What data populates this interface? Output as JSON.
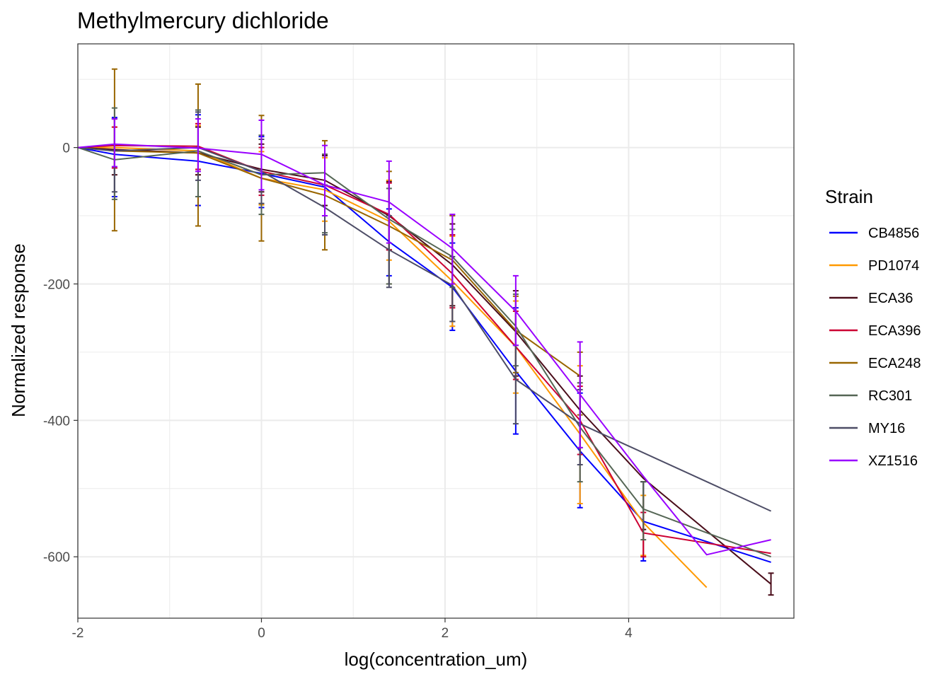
{
  "chart_data": {
    "type": "line",
    "title": "Methylmercury dichloride",
    "xlabel": "log(concentration_um)",
    "ylabel": "Normalized response",
    "xlim": [
      -2,
      5.8
    ],
    "ylim": [
      -690,
      152
    ],
    "x_ticks": [
      -2,
      0,
      2,
      4
    ],
    "x_tick_labels": [
      "-2",
      "0",
      "2",
      "4"
    ],
    "y_ticks": [
      0,
      -200,
      -400,
      -600
    ],
    "y_tick_labels": [
      "0",
      "-200",
      "-400",
      "-600"
    ],
    "grid": true,
    "legend": {
      "title": "Strain",
      "position": "right"
    },
    "series": [
      {
        "name": "CB4856",
        "color": "#0000ff",
        "x": [
          -2,
          -1.6,
          -0.69,
          0,
          0.69,
          1.39,
          2.08,
          2.77,
          3.47,
          4.16,
          5.55
        ],
        "y": [
          0,
          -10,
          -20,
          -38,
          -58,
          -138,
          -205,
          -328,
          -445,
          -548,
          -608
        ],
        "err_lo": [
          0,
          -72,
          -85,
          -88,
          -100,
          -188,
          -268,
          -420,
          -528,
          -606,
          null
        ],
        "err_hi": [
          0,
          44,
          48,
          16,
          -10,
          -90,
          -140,
          -235,
          -360,
          -490,
          null
        ]
      },
      {
        "name": "PD1074",
        "color": "#ff9900",
        "x": [
          -2,
          -1.6,
          -0.69,
          0,
          0.69,
          1.39,
          2.08,
          2.77,
          3.47,
          4.16,
          4.85
        ],
        "y": [
          0,
          0,
          -5,
          -45,
          -62,
          -108,
          -196,
          -292,
          -420,
          -550,
          -645
        ],
        "err_lo": [
          0,
          -30,
          -40,
          -84,
          -108,
          -165,
          -262,
          -360,
          -522,
          -598,
          null
        ],
        "err_hi": [
          0,
          30,
          32,
          -6,
          -15,
          -48,
          -130,
          -225,
          -320,
          -510,
          null
        ]
      },
      {
        "name": "ECA36",
        "color": "#4a0d1a",
        "x": [
          -2,
          -1.6,
          -0.69,
          0,
          0.69,
          1.39,
          2.08,
          2.77,
          3.47,
          4.16,
          5.55
        ],
        "y": [
          0,
          -3,
          -8,
          -32,
          -48,
          -100,
          -172,
          -270,
          -385,
          -485,
          -640
        ],
        "err_lo": [
          0,
          -40,
          -40,
          -65,
          -85,
          -150,
          -232,
          -335,
          -440,
          -560,
          -656
        ],
        "err_hi": [
          0,
          42,
          30,
          5,
          -12,
          -50,
          -112,
          -210,
          -335,
          -490,
          -624
        ]
      },
      {
        "name": "ECA396",
        "color": "#cc0033",
        "x": [
          -2,
          -1.6,
          -0.69,
          0,
          0.69,
          1.39,
          2.08,
          2.77,
          3.47,
          4.16,
          5.55
        ],
        "y": [
          0,
          3,
          2,
          -35,
          -55,
          -98,
          -185,
          -292,
          -400,
          -565,
          -595
        ],
        "err_lo": [
          0,
          -30,
          -32,
          -70,
          -100,
          -150,
          -235,
          -340,
          -450,
          -600,
          null
        ],
        "err_hi": [
          0,
          30,
          35,
          0,
          -10,
          -52,
          -128,
          -240,
          -350,
          -535,
          null
        ]
      },
      {
        "name": "ECA248",
        "color": "#996600",
        "x": [
          -2,
          -1.6,
          -0.69,
          0,
          0.69,
          1.39,
          2.08,
          2.77,
          3.47
        ],
        "y": [
          0,
          -5,
          -8,
          -45,
          -70,
          -115,
          -165,
          -268,
          -335
        ],
        "err_lo": [
          0,
          -122,
          -115,
          -137,
          -150,
          -200,
          -255,
          -330,
          -392
        ],
        "err_hi": [
          0,
          115,
          93,
          47,
          10,
          -35,
          -100,
          -218,
          -300
        ]
      },
      {
        "name": "RC301",
        "color": "#556655",
        "x": [
          -2,
          -1.6,
          -0.69,
          0,
          0.69,
          1.39,
          2.08,
          2.77,
          3.47,
          4.16,
          5.55
        ],
        "y": [
          0,
          -18,
          -5,
          -40,
          -37,
          -105,
          -160,
          -262,
          -410,
          -530,
          -600
        ],
        "err_lo": [
          0,
          -76,
          -72,
          -98,
          -125,
          -200,
          -205,
          -320,
          -490,
          -575,
          null
        ],
        "err_hi": [
          0,
          58,
          55,
          18,
          -10,
          -60,
          -120,
          -215,
          -345,
          -490,
          null
        ]
      },
      {
        "name": "MY16",
        "color": "#4d4d66",
        "x": [
          -2,
          -1.6,
          -0.69,
          0,
          0.69,
          1.39,
          2.08,
          2.77,
          3.47,
          5.55
        ],
        "y": [
          0,
          -5,
          0,
          -35,
          -88,
          -150,
          -202,
          -340,
          -405,
          -533
        ],
        "err_lo": [
          0,
          -65,
          -48,
          -82,
          -128,
          -205,
          -255,
          -405,
          -465,
          null
        ],
        "err_hi": [
          0,
          42,
          52,
          12,
          -55,
          -100,
          -160,
          -290,
          -355,
          null
        ]
      },
      {
        "name": "XZ1516",
        "color": "#9900ff",
        "x": [
          -2,
          -1.6,
          -0.69,
          0,
          0.69,
          1.39,
          2.08,
          2.77,
          3.47,
          4.16,
          4.85,
          5.55
        ],
        "y": [
          0,
          5,
          -1,
          -10,
          -55,
          -80,
          -148,
          -240,
          -362,
          -482,
          -597,
          -575
        ],
        "err_lo": [
          0,
          -28,
          -35,
          -62,
          -100,
          -140,
          -200,
          -290,
          -440,
          null,
          null,
          null
        ],
        "err_hi": [
          0,
          42,
          42,
          40,
          3,
          -20,
          -98,
          -188,
          -285,
          null,
          null,
          null
        ]
      }
    ]
  }
}
